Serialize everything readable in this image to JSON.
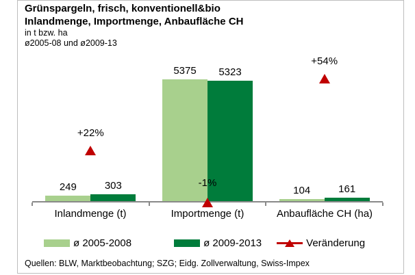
{
  "title": {
    "line1": "Grünspargeln, frisch, konventionell&bio",
    "line2": "Inlandmenge, Importmenge, Anbaufläche CH"
  },
  "subtitle": {
    "line1": "in t bzw. ha",
    "line2": "ø2005-08 und ø2009-13"
  },
  "chart_data": {
    "type": "bar",
    "categories": [
      "Inlandmenge (t)",
      "Importmenge (t)",
      "Anbaufläche CH (ha)"
    ],
    "series": [
      {
        "name": "ø 2005-2008",
        "color": "#a8d08d",
        "values": [
          249,
          5375,
          104
        ]
      },
      {
        "name": "ø 2009-2013",
        "color": "#007c3b",
        "values": [
          303,
          5323,
          161
        ]
      }
    ],
    "change_markers": {
      "name": "Veränderung",
      "color": "#c00000",
      "values": [
        "+22%",
        "-1%",
        "+54%"
      ]
    },
    "title": "Grünspargeln, frisch, konventionell&bio — Inlandmenge, Importmenge, Anbaufläche CH",
    "xlabel": "",
    "ylabel": "in t bzw. ha",
    "ylim": [
      0,
      5500
    ],
    "grid": false,
    "legend_position": "bottom",
    "value_labels_shown": true
  },
  "colors": {
    "axis": "#898989",
    "frame_border": "#bdbdbd",
    "text": "#000000"
  },
  "source": "Quellen: BLW, Marktbeobachtung; SZG; Eidg. Zollverwaltung, Swiss-Impex"
}
